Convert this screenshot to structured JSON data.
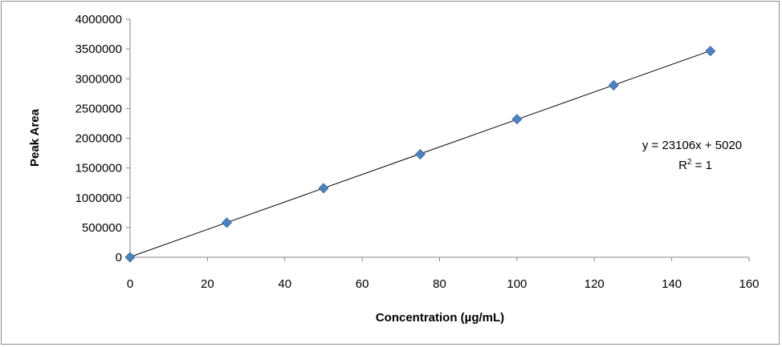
{
  "chart_data": {
    "type": "scatter",
    "xlabel": "Concentration (µg/mL)",
    "ylabel": "Peak Area",
    "xlim": [
      0,
      160
    ],
    "ylim": [
      0,
      4000000
    ],
    "xticks": [
      0,
      20,
      40,
      60,
      80,
      100,
      120,
      140,
      160
    ],
    "yticks": [
      0,
      500000,
      1000000,
      1500000,
      2000000,
      2500000,
      3000000,
      3500000,
      4000000
    ],
    "grid": false,
    "legend": "none",
    "marker": "diamond",
    "marker_color": "#4f81bd",
    "series": [
      {
        "x": [
          0,
          25,
          50,
          75,
          100,
          125,
          150
        ],
        "y": [
          0,
          580000,
          1160000,
          1730000,
          2320000,
          2890000,
          3465000
        ]
      }
    ],
    "trendline": {
      "slope": 23106,
      "intercept": 5020,
      "color": "#000000"
    },
    "annotations": {
      "equation": "y = 23106x + 5020",
      "r2_prefix": "R",
      "r2_sup": "2",
      "r2_suffix": " = 1"
    }
  }
}
